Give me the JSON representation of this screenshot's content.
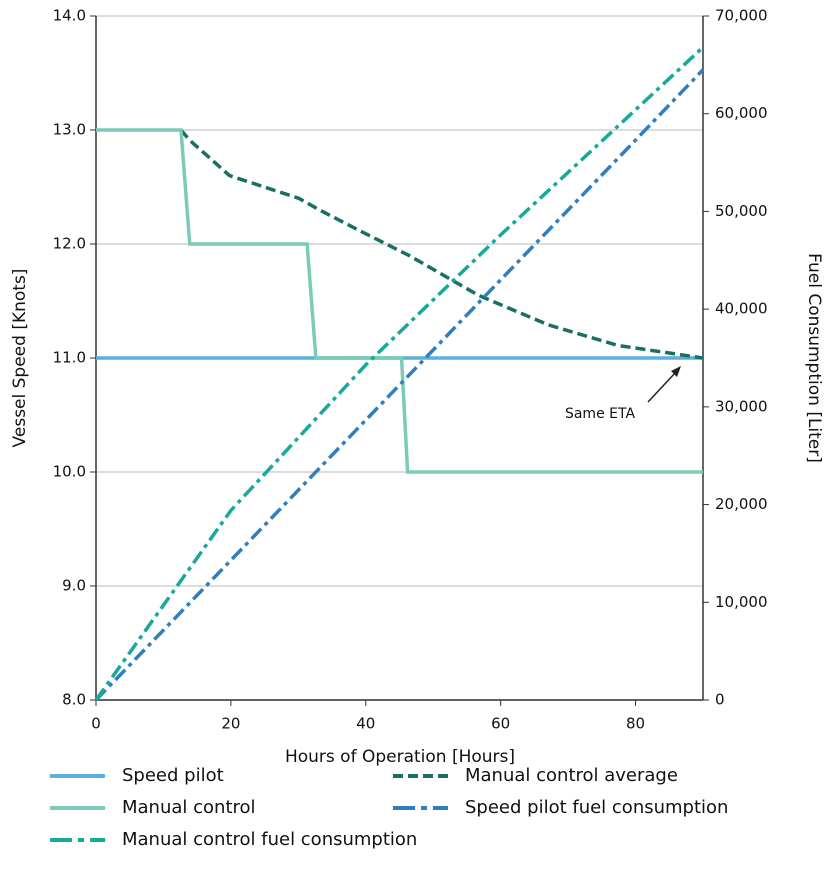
{
  "chart_data": {
    "type": "line",
    "xlabel": "Hours of Operation [Hours]",
    "ylabel": "Vessel Speed [Knots]",
    "y2label": "Fuel Consumption [Liter]",
    "xlim": [
      0,
      90
    ],
    "xticks": [
      0,
      20,
      40,
      60,
      80
    ],
    "ylim": [
      8,
      14
    ],
    "yticks": [
      {
        "value": 8,
        "label": "8.0"
      },
      {
        "value": 9,
        "label": "9.0"
      },
      {
        "value": 10,
        "label": "10.0"
      },
      {
        "value": 11,
        "label": "11.0"
      },
      {
        "value": 12,
        "label": "12.0"
      },
      {
        "value": 13,
        "label": "13.0"
      },
      {
        "value": 14,
        "label": "14.0"
      }
    ],
    "y2lim": [
      0,
      70000
    ],
    "y2ticks": [
      0,
      {
        "value": 10000,
        "label": "10,000"
      },
      {
        "value": 20000,
        "label": "20,000"
      },
      {
        "value": 30000,
        "label": "30,000"
      },
      {
        "value": 40000,
        "label": "40,000"
      },
      {
        "value": 50000,
        "label": "50,000"
      },
      {
        "value": 60000,
        "label": "60,000"
      },
      {
        "value": 70000,
        "label": "70,000"
      }
    ],
    "grid": true,
    "annotation": "Same ETA",
    "series": [
      {
        "name": "Speed pilot",
        "color": "#5ab0dc",
        "style": "solid",
        "x": [
          0,
          90
        ],
        "values": [
          11,
          11
        ]
      },
      {
        "name": "Manual control average",
        "color": "#1a6e63",
        "style": "dashed",
        "x": [
          12.6,
          13.9,
          19.8,
          30.1,
          33.1,
          39,
          46.4,
          56.7,
          67.1,
          77.4,
          90
        ],
        "values": [
          13,
          12.91,
          12.6,
          12.4,
          12.3,
          12.12,
          11.9,
          11.55,
          11.29,
          11.11,
          11
        ]
      },
      {
        "name": "Manual control",
        "color": "#7ccbb8",
        "style": "solid",
        "x": [
          0,
          12.6,
          13.9,
          31.3,
          32.6,
          45.3,
          46.2,
          90
        ],
        "values": [
          13,
          13,
          12,
          12,
          11,
          11,
          10,
          10
        ]
      },
      {
        "name": "Speed pilot fuel consumption",
        "color": "#2f7fc0",
        "style": "dashdot",
        "axis": "y2",
        "x": [
          0,
          20,
          40,
          60,
          80,
          90
        ],
        "values": [
          0,
          14300,
          28650,
          43000,
          57300,
          64500
        ]
      },
      {
        "name": "Manual control fuel consumption",
        "color": "#18a99a",
        "style": "dashdot",
        "axis": "y2",
        "x": [
          0,
          20,
          40,
          60,
          80,
          90
        ],
        "values": [
          0,
          19400,
          34300,
          47600,
          60400,
          66800
        ]
      }
    ]
  }
}
